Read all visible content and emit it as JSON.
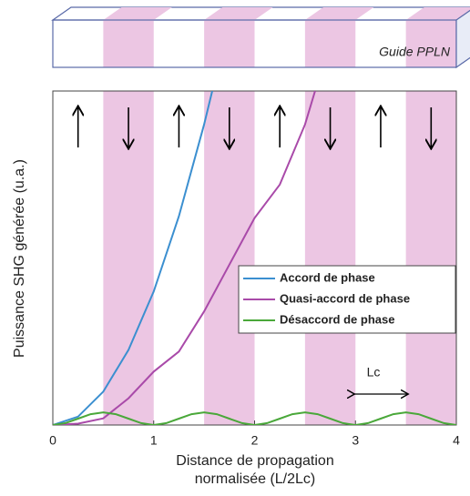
{
  "chart_data": {
    "type": "line",
    "guide_label": "Guide PPLN",
    "x_label": [
      "Distance de propagation",
      "normalisée (L/2Lc)"
    ],
    "y_label": "Puissance SHG générée (u.a.)",
    "annotation": "Lc",
    "xlim": [
      0,
      4
    ],
    "xticks": [
      0,
      1,
      2,
      3,
      4
    ],
    "ylim": [
      0,
      5
    ],
    "legend": "center right",
    "series": [
      {
        "name": "Accord de phase",
        "color": "#3b8fd0",
        "x": [
          0,
          0.25,
          0.5,
          0.75,
          1,
          1.25,
          1.5,
          1.58
        ],
        "values": [
          0,
          0.125,
          0.5,
          1.125,
          2,
          3.125,
          4.5,
          5
        ]
      },
      {
        "name": "Quasi-accord de phase",
        "color": "#a94aa9",
        "x": [
          0,
          0.25,
          0.5,
          0.75,
          1,
          1.25,
          1.5,
          1.75,
          2,
          2.25,
          2.5,
          2.6
        ],
        "values": [
          0,
          0.02,
          0.1,
          0.4,
          0.8,
          1.1,
          1.7,
          2.4,
          3.1,
          3.6,
          4.5,
          5
        ]
      },
      {
        "name": "Désaccord de phase",
        "color": "#4aa83a",
        "x": [
          0,
          0.125,
          0.25,
          0.375,
          0.5,
          0.625,
          0.75,
          0.875,
          1,
          1.125,
          1.25,
          1.375,
          1.5,
          1.625,
          1.75,
          1.875,
          2,
          2.125,
          2.25,
          2.375,
          2.5,
          2.625,
          2.75,
          2.875,
          3,
          3.125,
          3.25,
          3.375,
          3.5,
          3.625,
          3.75,
          3.875,
          4
        ],
        "values": [
          0,
          0.028,
          0.095,
          0.162,
          0.19,
          0.162,
          0.095,
          0.028,
          0,
          0.028,
          0.095,
          0.162,
          0.19,
          0.162,
          0.095,
          0.028,
          0,
          0.028,
          0.095,
          0.162,
          0.19,
          0.162,
          0.095,
          0.028,
          0,
          0.028,
          0.095,
          0.162,
          0.19,
          0.162,
          0.095,
          0.028,
          0
        ]
      }
    ]
  }
}
